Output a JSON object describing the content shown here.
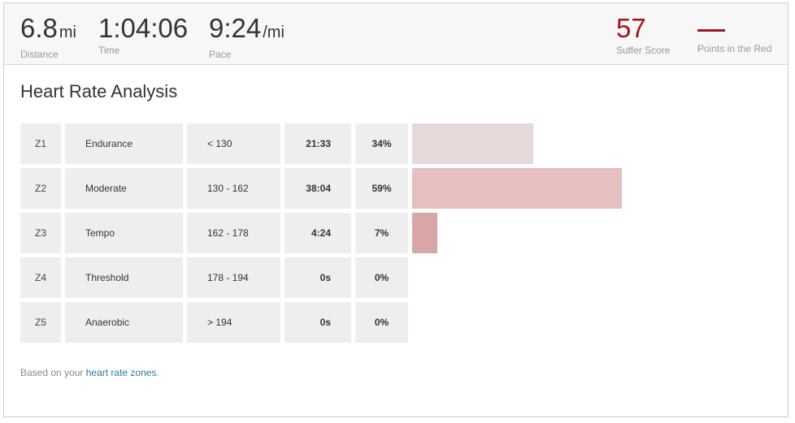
{
  "stats": {
    "distance": {
      "value": "6.8",
      "unit": "mi",
      "label": "Distance"
    },
    "time": {
      "value": "1:04:06",
      "label": "Time"
    },
    "pace": {
      "value": "9:24",
      "unit": "/mi",
      "label": "Pace"
    },
    "suffer": {
      "value": "57",
      "label": "Suffer Score"
    },
    "points_red": {
      "value": "—",
      "label": "Points in the Red"
    }
  },
  "section": {
    "title": "Heart Rate Analysis"
  },
  "zones": [
    {
      "zone": "Z1",
      "name": "Endurance",
      "range": "< 130",
      "time": "21:33",
      "pct": "34%",
      "fraction": 0.34,
      "color": "#e7d9da"
    },
    {
      "zone": "Z2",
      "name": "Moderate",
      "range": "130 - 162",
      "time": "38:04",
      "pct": "59%",
      "fraction": 0.59,
      "color": "#e6c0c1"
    },
    {
      "zone": "Z3",
      "name": "Tempo",
      "range": "162 - 178",
      "time": "4:24",
      "pct": "7%",
      "fraction": 0.07,
      "color": "#d9a6a7"
    },
    {
      "zone": "Z4",
      "name": "Threshold",
      "range": "178 - 194",
      "time": "0s",
      "pct": "0%",
      "fraction": 0,
      "color": "#cf8f91"
    },
    {
      "zone": "Z5",
      "name": "Anaerobic",
      "range": "> 194",
      "time": "0s",
      "pct": "0%",
      "fraction": 0,
      "color": "#c47174"
    }
  ],
  "footnote": {
    "prefix": "Based on your ",
    "link": "heart rate zones",
    "suffix": "."
  },
  "colors": {
    "accent_red": "#a3151a",
    "link": "#2a79a8"
  }
}
